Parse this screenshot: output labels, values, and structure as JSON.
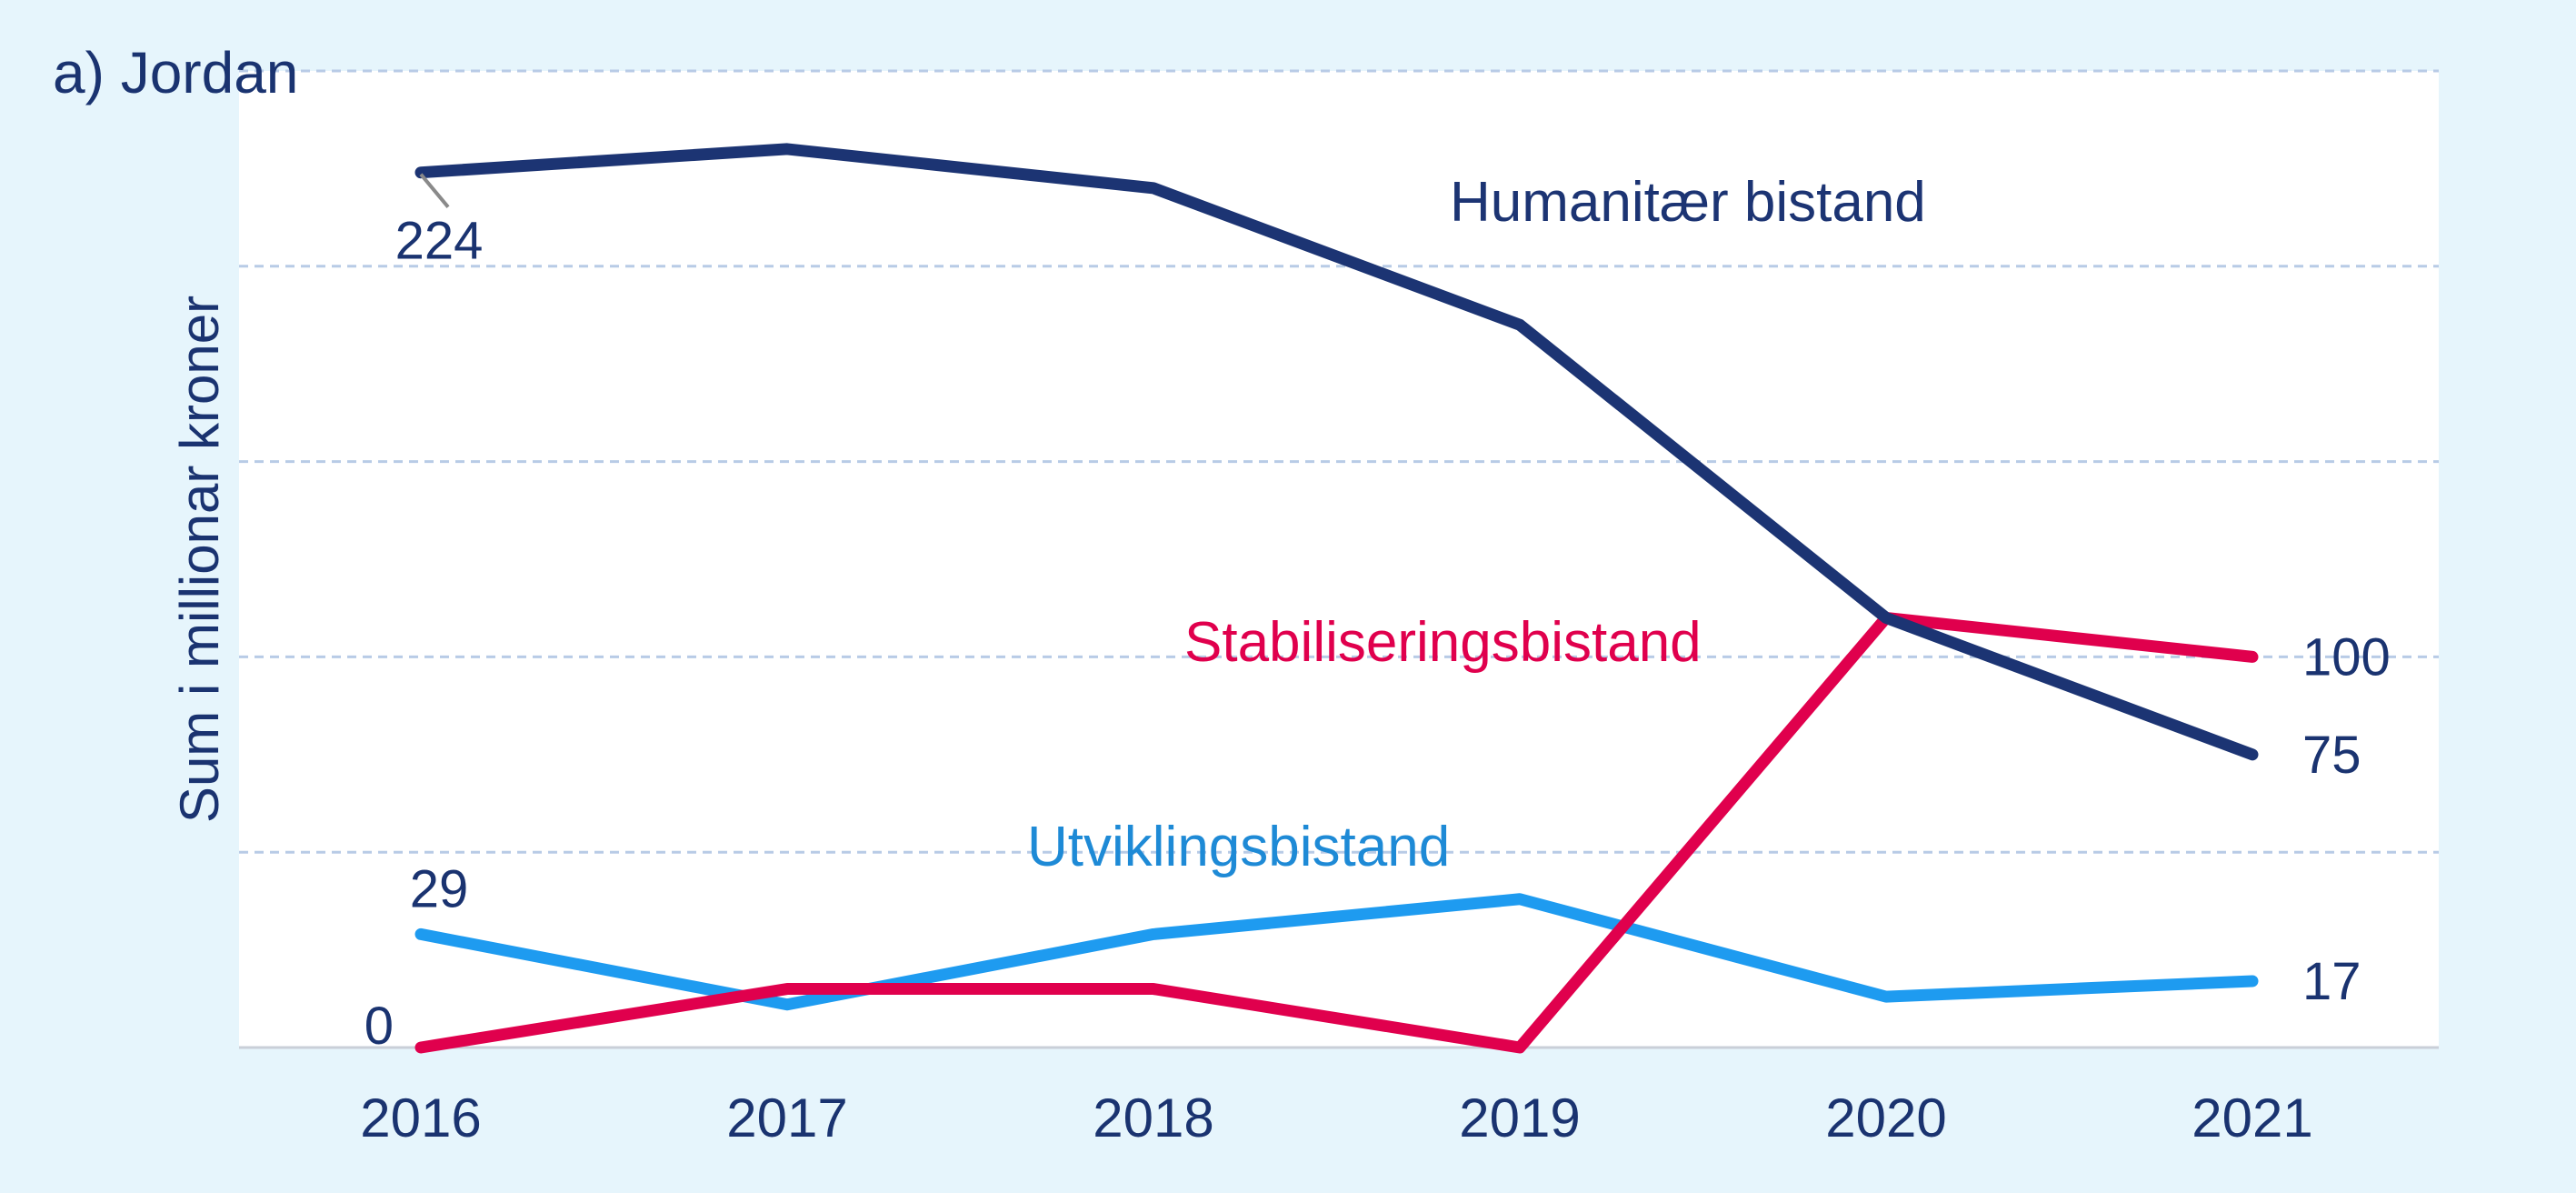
{
  "chart_data": {
    "type": "line",
    "title": "a) Jordan",
    "ylabel": "Sum i millionar kroner",
    "xlabel": "",
    "ylim": [
      0,
      250
    ],
    "grid": true,
    "categories": [
      "2016",
      "2017",
      "2018",
      "2019",
      "2020",
      "2021"
    ],
    "series": [
      {
        "name": "Humanitær bistand",
        "color": "#1c3473",
        "values": [
          224,
          230,
          220,
          185,
          110,
          75
        ],
        "value_labels": [
          "224",
          "",
          "",
          "",
          "",
          "75"
        ]
      },
      {
        "name": "Stabiliseringsbistand",
        "color": "#e0004d",
        "values": [
          0,
          15,
          15,
          0,
          110,
          100
        ],
        "value_labels": [
          "0",
          "",
          "",
          "",
          "",
          "100"
        ]
      },
      {
        "name": "Utviklingsbistand",
        "color": "#1e9bf0",
        "values": [
          29,
          11,
          29,
          38,
          13,
          17
        ],
        "value_labels": [
          "29",
          "",
          "",
          "",
          "",
          "17"
        ]
      }
    ]
  }
}
